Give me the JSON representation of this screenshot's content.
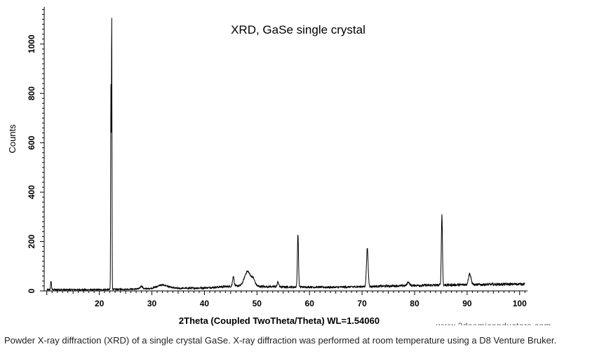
{
  "chart_data": {
    "type": "line",
    "title": "XRD, GaSe single crystal",
    "xlabel": "2Theta (Coupled TwoTheta/Theta) WL=1.54060",
    "ylabel": "Counts",
    "xlim": [
      9.5,
      101.5
    ],
    "ylim": [
      0,
      1150
    ],
    "xticks": [
      20,
      30,
      40,
      50,
      60,
      70,
      80,
      90,
      100
    ],
    "yticks": [
      0,
      200,
      400,
      600,
      800,
      1000
    ],
    "grid": false,
    "legend": "none",
    "line_color": "#000000",
    "series": [
      {
        "baseline": [
          [
            10,
            5
          ],
          [
            20,
            5
          ],
          [
            30,
            9
          ],
          [
            40,
            12
          ],
          [
            46,
            20
          ],
          [
            55,
            16
          ],
          [
            65,
            15
          ],
          [
            80,
            22
          ],
          [
            90,
            25
          ],
          [
            101,
            28
          ]
        ],
        "peaks": [
          {
            "x": 10.8,
            "height": 35,
            "width": 0.12
          },
          {
            "x": 22.2,
            "height": 820,
            "width": 0.07
          },
          {
            "x": 22.35,
            "height": 1120,
            "width": 0.07
          },
          {
            "x": 28.0,
            "height": 12,
            "width": 0.3
          },
          {
            "x": 32.0,
            "height": 14,
            "width": 1.5
          },
          {
            "x": 45.5,
            "height": 40,
            "width": 0.2
          },
          {
            "x": 48.2,
            "height": 60,
            "width": 0.8
          },
          {
            "x": 49.3,
            "height": 25,
            "width": 0.5
          },
          {
            "x": 54.0,
            "height": 20,
            "width": 0.2
          },
          {
            "x": 57.8,
            "height": 215,
            "width": 0.15
          },
          {
            "x": 71.0,
            "height": 155,
            "width": 0.22
          },
          {
            "x": 78.8,
            "height": 15,
            "width": 0.3
          },
          {
            "x": 85.2,
            "height": 285,
            "width": 0.15
          },
          {
            "x": 90.5,
            "height": 45,
            "width": 0.35
          }
        ]
      }
    ]
  },
  "caption": "Powder X-ray diffraction (XRD) of a single crystal GaSe. X-ray diffraction was performed at room temperature using a D8 Venture Bruker."
}
